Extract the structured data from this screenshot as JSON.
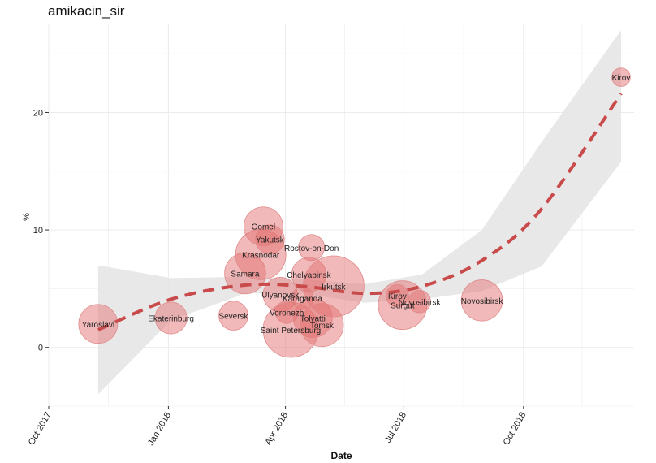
{
  "chart_data": {
    "type": "scatter",
    "title": "amikacin_sir",
    "xlabel": "Date",
    "ylabel": "%",
    "x_range": [
      "2017-10-01",
      "2018-12-25"
    ],
    "ylim": [
      -5,
      27.5
    ],
    "x_ticks": [
      {
        "date": "2017-10-01",
        "label": "Oct 2017"
      },
      {
        "date": "2018-01-01",
        "label": "Jan 2018"
      },
      {
        "date": "2018-04-01",
        "label": "Apr 2018"
      },
      {
        "date": "2018-07-01",
        "label": "Jul 2018"
      },
      {
        "date": "2018-10-01",
        "label": "Oct 2018"
      }
    ],
    "y_ticks": [
      0,
      10,
      20
    ],
    "colors": {
      "bubble": "#e47474",
      "bubble_stroke": "#e08a8a",
      "trend": "#c94a4a",
      "ribbon": "#e5e5e5",
      "grid": "#ebebeb"
    },
    "points": [
      {
        "label": "Yaroslavl",
        "date": "2017-11-08",
        "y": 2.0,
        "size": 9
      },
      {
        "label": "Ekaterinburg",
        "date": "2018-01-03",
        "y": 2.5,
        "size": 6
      },
      {
        "label": "Seversk",
        "date": "2018-02-20",
        "y": 2.7,
        "size": 5
      },
      {
        "label": "Samara",
        "date": "2018-03-01",
        "y": 6.3,
        "size": 10
      },
      {
        "label": "Krasnodar",
        "date": "2018-03-13",
        "y": 7.9,
        "size": 15
      },
      {
        "label": "Gomel",
        "date": "2018-03-15",
        "y": 10.3,
        "size": 9
      },
      {
        "label": "Yakutsk",
        "date": "2018-03-20",
        "y": 9.2,
        "size": 5
      },
      {
        "label": "Ulyanovsk",
        "date": "2018-03-28",
        "y": 4.5,
        "size": 7
      },
      {
        "label": "Voronezh",
        "date": "2018-04-02",
        "y": 3.0,
        "size": 3
      },
      {
        "label": "Saint Petersburg",
        "date": "2018-04-05",
        "y": 1.5,
        "size": 18
      },
      {
        "label": "Karaganda",
        "date": "2018-04-14",
        "y": 4.2,
        "size": 3
      },
      {
        "label": "Rostov-on-Don",
        "date": "2018-04-21",
        "y": 8.5,
        "size": 4
      },
      {
        "label": "Chelyabinsk",
        "date": "2018-04-19",
        "y": 6.2,
        "size": 7
      },
      {
        "label": "Tolyatti",
        "date": "2018-04-22",
        "y": 2.5,
        "size": 9
      },
      {
        "label": "Tomsk",
        "date": "2018-04-29",
        "y": 1.9,
        "size": 11
      },
      {
        "label": "Irkutsk",
        "date": "2018-05-08",
        "y": 5.2,
        "size": 22
      },
      {
        "label": "Surgut",
        "date": "2018-06-30",
        "y": 3.6,
        "size": 14
      },
      {
        "label": "Kirov",
        "date": "2018-06-26",
        "y": 4.4,
        "size": 3
      },
      {
        "label": "Novosibirsk",
        "date": "2018-07-13",
        "y": 3.9,
        "size": 3
      },
      {
        "label": "Novosibirsk",
        "date": "2018-08-30",
        "y": 4.0,
        "size": 10
      },
      {
        "label": "Kirov",
        "date": "2018-12-15",
        "y": 23.0,
        "size": 2
      }
    ],
    "trend_line": {
      "style": "dashed",
      "x": [
        "2017-11-08",
        "2018-01-03",
        "2018-03-01",
        "2018-04-15",
        "2018-06-01",
        "2018-07-15",
        "2018-08-30",
        "2018-10-15",
        "2018-12-15"
      ],
      "y": [
        1.5,
        4.1,
        5.3,
        5.2,
        4.6,
        5.2,
        7.4,
        11.8,
        21.6
      ],
      "ribbon_upper": [
        7.0,
        5.9,
        6.0,
        5.8,
        5.4,
        6.2,
        10.0,
        17.5,
        27.0
      ],
      "ribbon_lower": [
        -4.0,
        2.3,
        4.6,
        4.6,
        3.8,
        4.1,
        4.8,
        6.9,
        15.8
      ]
    }
  }
}
